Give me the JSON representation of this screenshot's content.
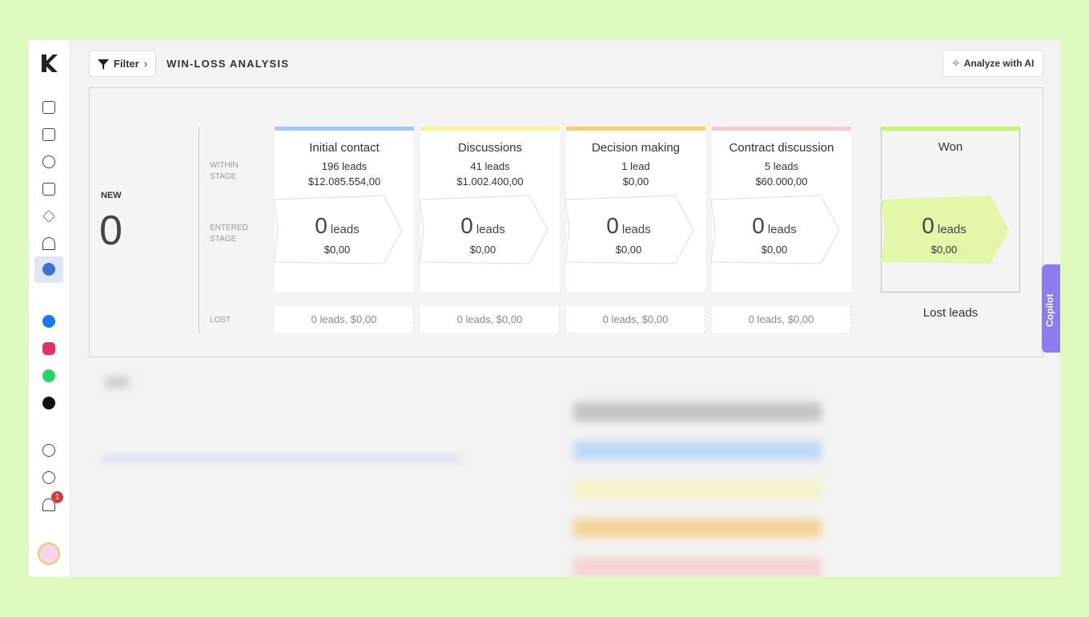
{
  "toolbar": {
    "filter": "Filter",
    "title": "WIN-LOSS ANALYSIS",
    "ai_button": "Analyze with AI"
  },
  "new": {
    "label": "NEW",
    "count": "0"
  },
  "row_labels": {
    "within": "WITHIN STAGE",
    "entered": "ENTERED STAGE",
    "lost": "LOST"
  },
  "stages": [
    {
      "name": "Initial contact",
      "color": "#a9c9f5",
      "within_leads": "196 leads",
      "within_amount": "$12.085.554,00",
      "entered_count": "0",
      "entered_unit": "leads",
      "entered_amount": "$0,00",
      "lost": "0 leads, $0,00"
    },
    {
      "name": "Discussions",
      "color": "#f7f3a6",
      "within_leads": "41 leads",
      "within_amount": "$1.002.400,00",
      "entered_count": "0",
      "entered_unit": "leads",
      "entered_amount": "$0,00",
      "lost": "0 leads, $0,00"
    },
    {
      "name": "Decision making",
      "color": "#f5cd78",
      "within_leads": "1 lead",
      "within_amount": "$0,00",
      "entered_count": "0",
      "entered_unit": "leads",
      "entered_amount": "$0,00",
      "lost": "0 leads, $0,00"
    },
    {
      "name": "Contract discussion",
      "color": "#f6cccc",
      "within_leads": "5 leads",
      "within_amount": "$60.000,00",
      "entered_count": "0",
      "entered_unit": "leads",
      "entered_amount": "$0,00",
      "lost": "0 leads, $0,00"
    }
  ],
  "won": {
    "name": "Won",
    "color": "#c9ef7c",
    "fill": "#e4f6a8",
    "entered_count": "0",
    "entered_unit": "leads",
    "entered_amount": "$0,00"
  },
  "lost_leads": "Lost leads",
  "copilot": "Copilot",
  "notification_count": "1"
}
